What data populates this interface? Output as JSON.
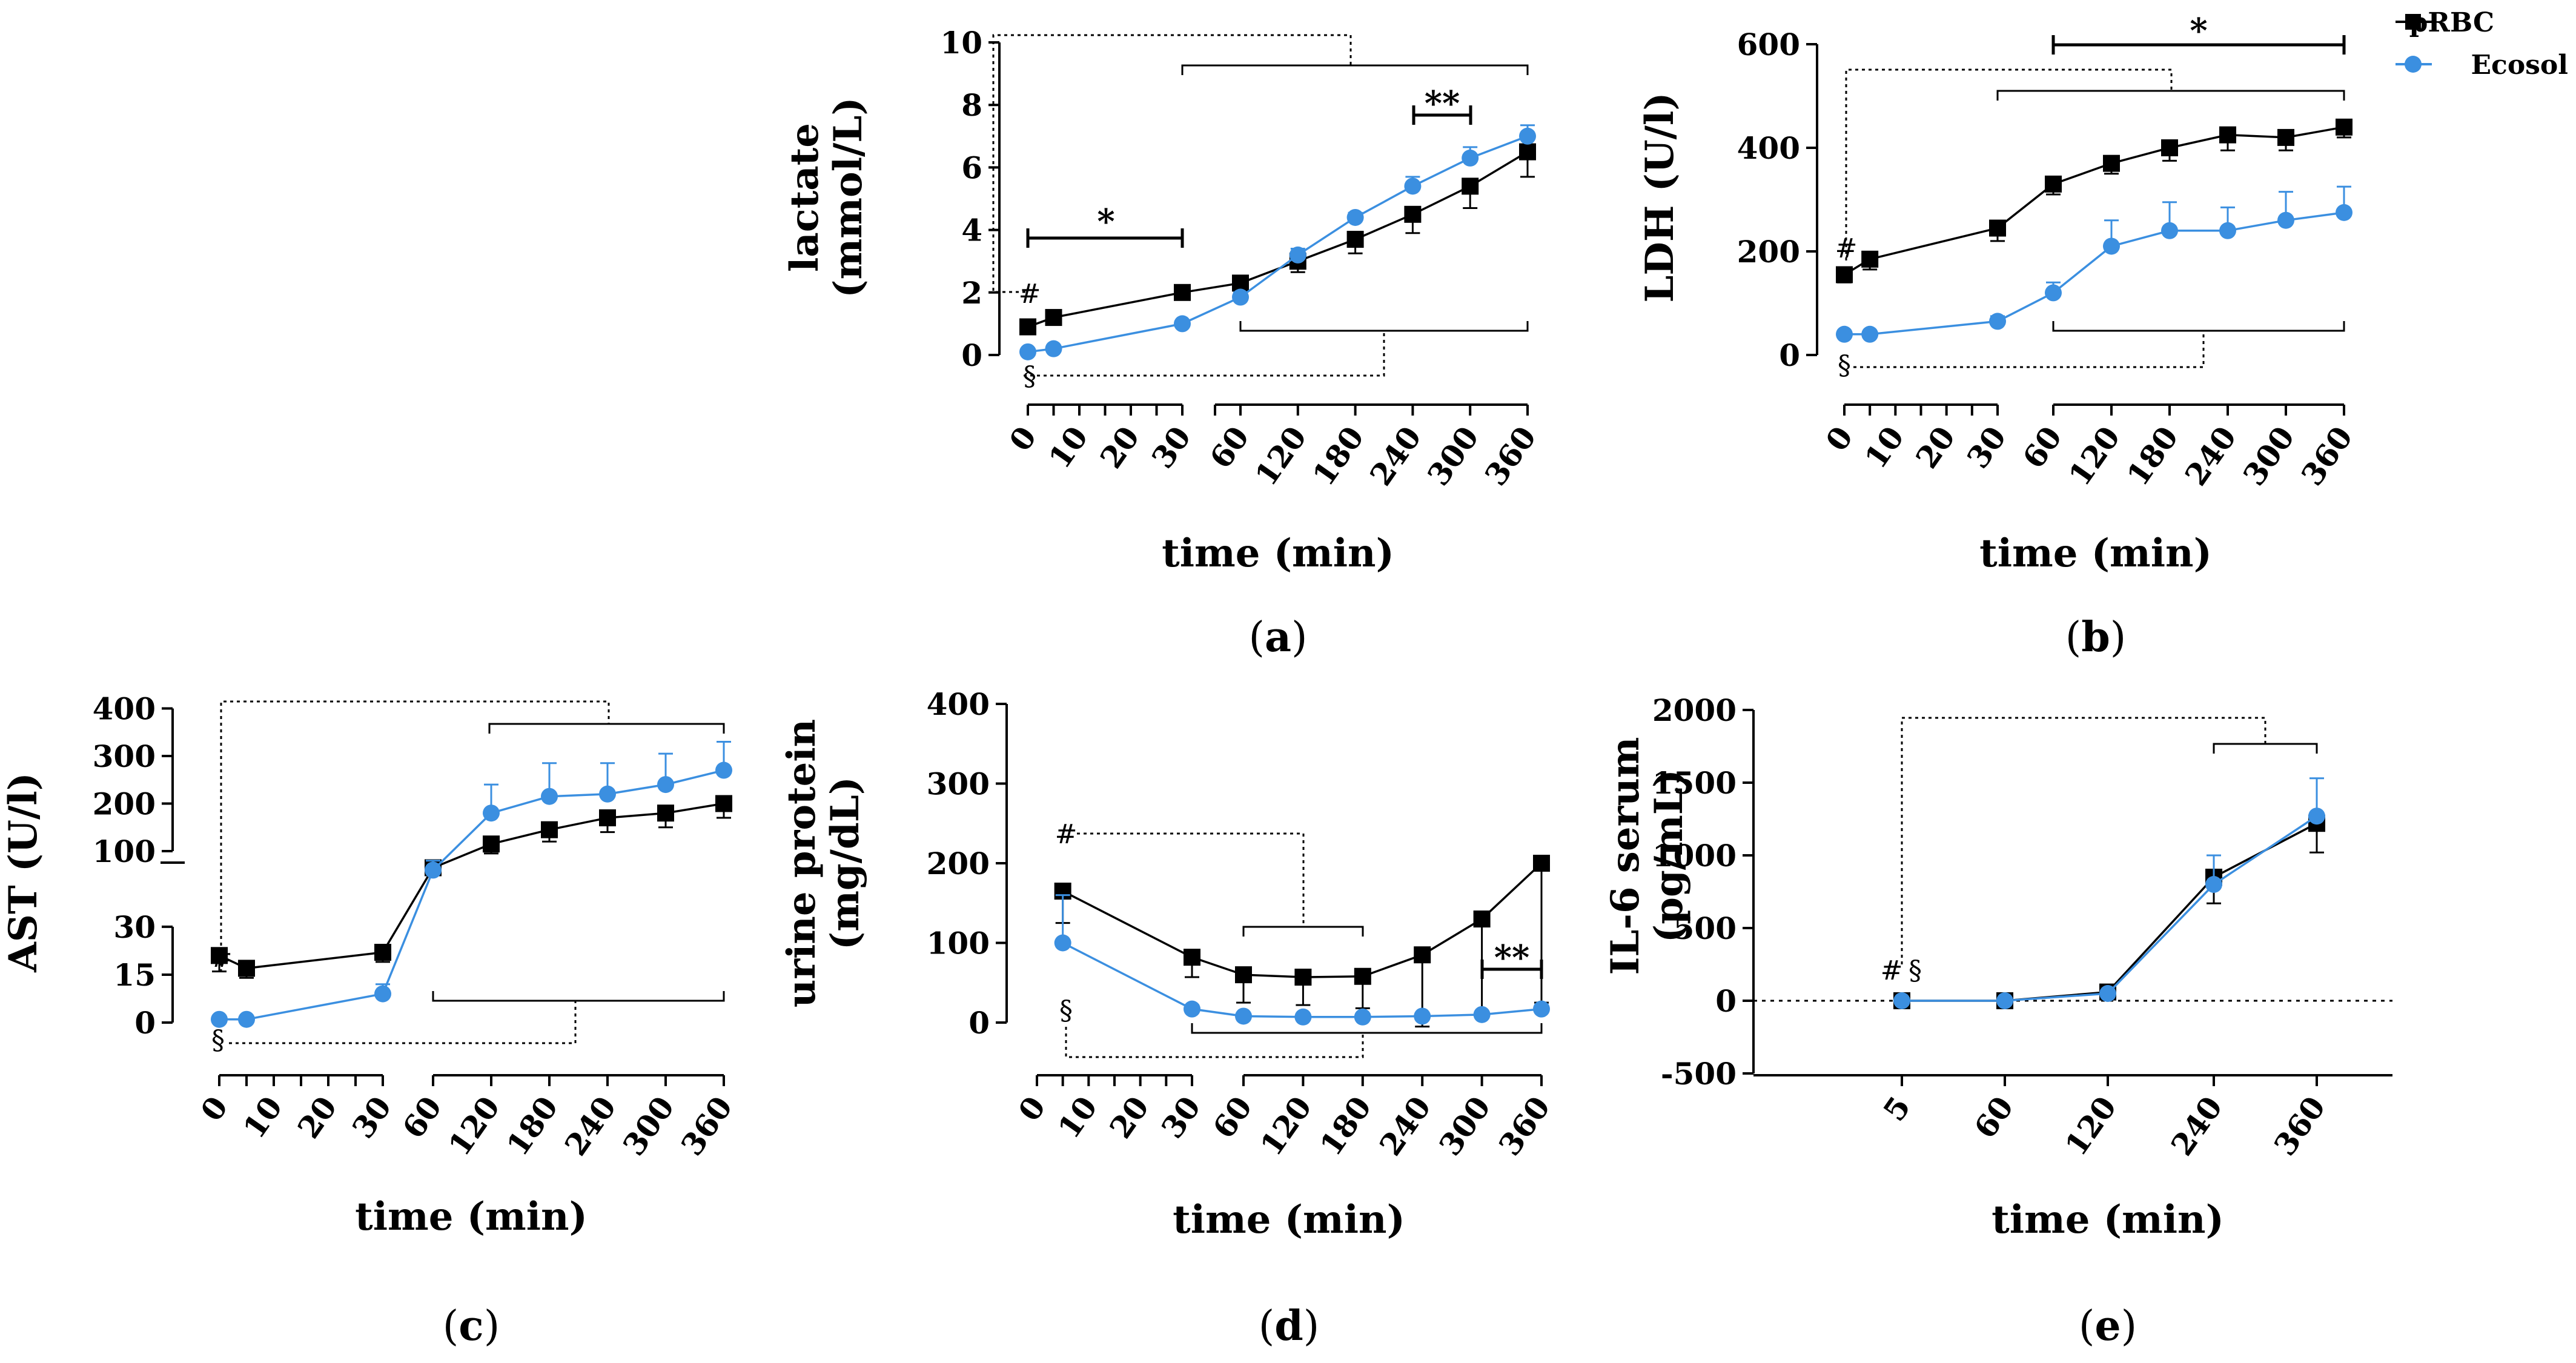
{
  "legend": [
    {
      "name": "pRBC",
      "color": "#000000",
      "marker": "square"
    },
    {
      "name": "Ecosol",
      "color": "#3b8fe0",
      "marker": "circle"
    }
  ],
  "chart_data": [
    {
      "panel": "(a)",
      "type": "line",
      "ylabel": [
        "lactate",
        "(mmol/L)"
      ],
      "xlabel": "time (min)",
      "ylim": [
        0,
        10
      ],
      "yticks": [
        0,
        2,
        4,
        6,
        8,
        10
      ],
      "x_tick_labels": [
        "0",
        "10",
        "20",
        "30",
        "60",
        "120",
        "180",
        "240",
        "300",
        "360"
      ],
      "series": [
        {
          "name": "pRBC",
          "x": [
            0,
            5,
            30,
            60,
            120,
            180,
            240,
            300,
            360
          ],
          "values": [
            0.9,
            1.2,
            2.0,
            2.3,
            3.0,
            3.7,
            4.5,
            5.4,
            6.5
          ],
          "err": [
            0.15,
            0.1,
            0.1,
            0.2,
            0.35,
            0.45,
            0.6,
            0.7,
            0.8
          ]
        },
        {
          "name": "Ecosol",
          "x": [
            0,
            5,
            30,
            60,
            120,
            180,
            240,
            300,
            360
          ],
          "values": [
            0.1,
            0.2,
            1.0,
            1.85,
            3.2,
            4.4,
            5.4,
            6.3,
            7.0
          ],
          "err": [
            0.05,
            0.05,
            0.1,
            0.15,
            0.2,
            0.15,
            0.3,
            0.35,
            0.35
          ]
        }
      ],
      "annotations": [
        "#",
        "§",
        "*",
        "**"
      ]
    },
    {
      "panel": "(b)",
      "type": "line",
      "ylabel": [
        "LDH (U/l)"
      ],
      "xlabel": "time (min)",
      "ylim": [
        0,
        600
      ],
      "yticks": [
        0,
        200,
        400,
        600
      ],
      "x_tick_labels": [
        "0",
        "10",
        "20",
        "30",
        "60",
        "120",
        "180",
        "240",
        "300",
        "360"
      ],
      "series": [
        {
          "name": "pRBC",
          "x": [
            0,
            5,
            30,
            60,
            120,
            180,
            240,
            300,
            360
          ],
          "values": [
            155,
            185,
            245,
            330,
            370,
            400,
            425,
            420,
            440
          ],
          "err": [
            15,
            20,
            25,
            20,
            20,
            25,
            30,
            25,
            20
          ]
        },
        {
          "name": "Ecosol",
          "x": [
            0,
            5,
            30,
            60,
            120,
            180,
            240,
            300,
            360
          ],
          "values": [
            40,
            40,
            65,
            120,
            210,
            240,
            240,
            260,
            275
          ],
          "err": [
            5,
            5,
            10,
            20,
            50,
            55,
            45,
            55,
            50
          ]
        }
      ],
      "annotations": [
        "#",
        "§",
        "*"
      ]
    },
    {
      "panel": "(c)",
      "type": "line",
      "broken_y_axis": true,
      "ylabel": [
        "AST (U/l)"
      ],
      "xlabel": "time (min)",
      "yticks": [
        0,
        15,
        30,
        100,
        200,
        300,
        400
      ],
      "x_tick_labels": [
        "0",
        "10",
        "20",
        "30",
        "60",
        "120",
        "180",
        "240",
        "300",
        "360"
      ],
      "series": [
        {
          "name": "pRBC",
          "x": [
            0,
            5,
            30,
            60,
            120,
            180,
            240,
            300,
            360
          ],
          "values": [
            21,
            17,
            22,
            65,
            115,
            145,
            170,
            180,
            200
          ],
          "err": [
            5,
            3,
            3,
            10,
            20,
            25,
            30,
            30,
            30
          ]
        },
        {
          "name": "Ecosol",
          "x": [
            0,
            5,
            30,
            60,
            120,
            180,
            240,
            300,
            360
          ],
          "values": [
            1,
            1,
            9,
            60,
            180,
            215,
            220,
            240,
            270
          ],
          "err": [
            1,
            1,
            3,
            20,
            60,
            70,
            65,
            65,
            60
          ]
        }
      ],
      "annotations": [
        "#",
        "§"
      ]
    },
    {
      "panel": "(d)",
      "type": "line",
      "ylabel": [
        "urine protein",
        "(mg/dL)"
      ],
      "xlabel": "time (min)",
      "ylim": [
        0,
        400
      ],
      "yticks": [
        0,
        100,
        200,
        300,
        400
      ],
      "x_tick_labels": [
        "0",
        "10",
        "20",
        "30",
        "60",
        "120",
        "180",
        "240",
        "300",
        "360"
      ],
      "series": [
        {
          "name": "pRBC",
          "x": [
            5,
            30,
            60,
            120,
            180,
            240,
            300,
            360
          ],
          "values": [
            165,
            82,
            60,
            57,
            58,
            85,
            130,
            200
          ],
          "err": [
            40,
            25,
            35,
            35,
            40,
            90,
            120,
            175
          ]
        },
        {
          "name": "Ecosol",
          "x": [
            5,
            30,
            60,
            120,
            180,
            240,
            300,
            360
          ],
          "values": [
            100,
            17,
            8,
            7,
            7,
            8,
            10,
            17
          ],
          "err": [
            60,
            5,
            3,
            3,
            3,
            3,
            3,
            5
          ]
        }
      ],
      "annotations": [
        "#",
        "§",
        "**"
      ]
    },
    {
      "panel": "(e)",
      "type": "line",
      "ylabel": [
        "IL-6 serum",
        "(pg/mL)"
      ],
      "xlabel": "time (min)",
      "ylim": [
        -500,
        2000
      ],
      "yticks": [
        -500,
        0,
        500,
        1000,
        1500,
        2000
      ],
      "x_tick_labels": [
        "5",
        "60",
        "120",
        "240",
        "360"
      ],
      "series": [
        {
          "name": "pRBC",
          "x": [
            5,
            60,
            120,
            240,
            360
          ],
          "values": [
            0,
            0,
            60,
            850,
            1220
          ],
          "err": [
            0,
            0,
            20,
            180,
            200
          ]
        },
        {
          "name": "Ecosol",
          "x": [
            5,
            60,
            120,
            240,
            360
          ],
          "values": [
            0,
            0,
            50,
            800,
            1270
          ],
          "err": [
            0,
            0,
            20,
            200,
            260
          ]
        }
      ],
      "annotations": [
        "#",
        "§"
      ]
    }
  ]
}
